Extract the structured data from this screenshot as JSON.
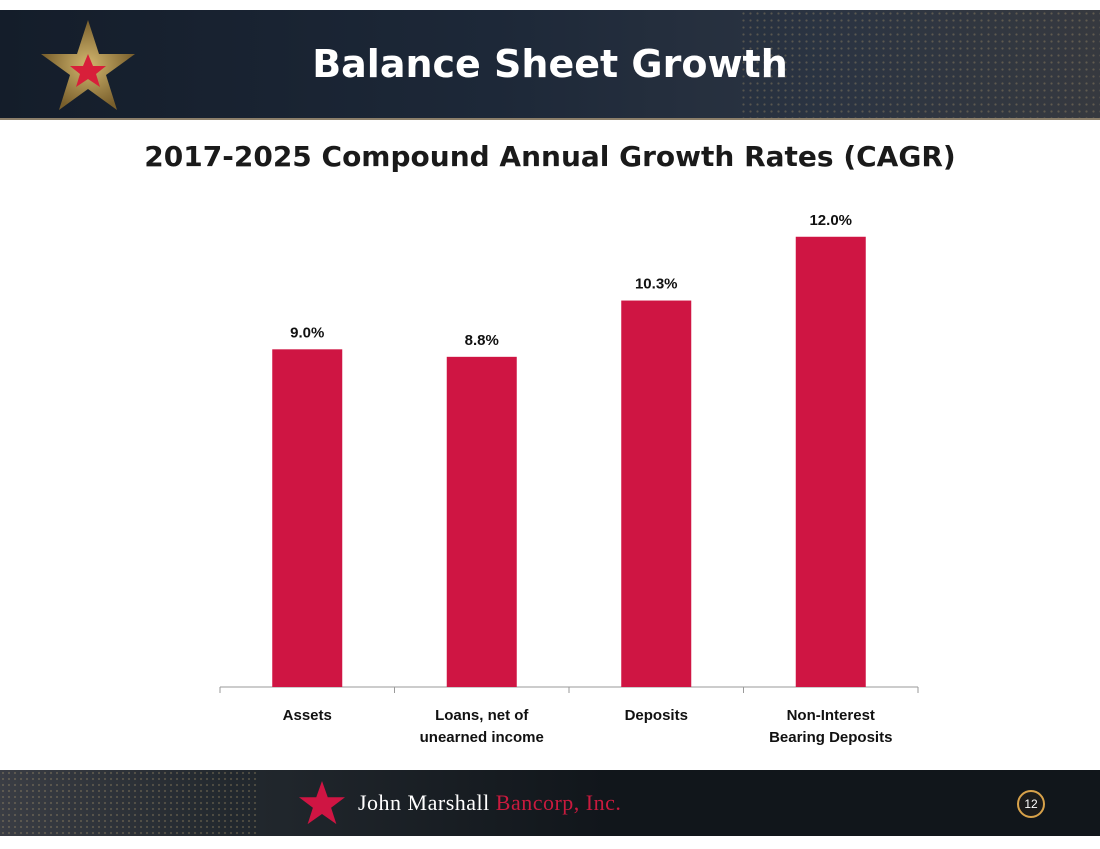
{
  "header": {
    "title": "Balance Sheet Growth"
  },
  "footer": {
    "company_name": "John Marshall",
    "company_suffix": "Bancorp, Inc.",
    "page_number": "12"
  },
  "colors": {
    "bar": "#cf1543",
    "header_bg": "#1d2838",
    "footer_bg": "#11161b",
    "accent_gold": "#d8a24a"
  },
  "chart_data": {
    "type": "bar",
    "title": "2017-2025 Compound Annual Growth Rates (CAGR)",
    "categories": [
      [
        "Assets"
      ],
      [
        "Loans, net of",
        "unearned income"
      ],
      [
        "Deposits"
      ],
      [
        "Non-Interest",
        "Bearing Deposits"
      ]
    ],
    "values": [
      9.0,
      8.8,
      10.3,
      12.0
    ],
    "data_labels": [
      "9.0%",
      "8.8%",
      "10.3%",
      "12.0%"
    ],
    "ylim": [
      0,
      12.5
    ],
    "grid": false,
    "legend": "none"
  }
}
